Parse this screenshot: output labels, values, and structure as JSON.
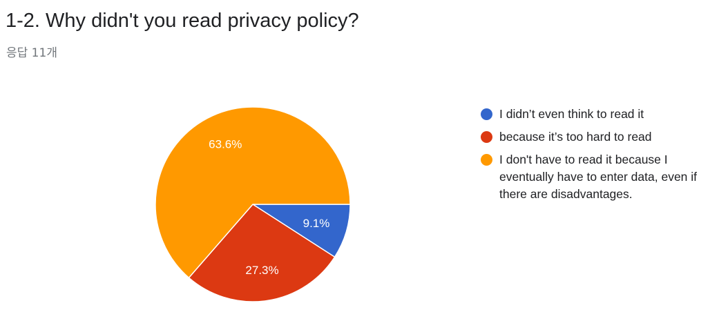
{
  "header": {
    "title": "1-2. Why didn't you read privacy policy?",
    "responses": "응답 11개"
  },
  "chart_data": {
    "type": "pie",
    "title": "1-2. Why didn't you read privacy policy?",
    "slices": [
      {
        "label": "I didn’t even think to read it",
        "value": 9.1,
        "display": "9.1%",
        "color": "#3366cc"
      },
      {
        "label": "because it’s too hard to read",
        "value": 27.3,
        "display": "27.3%",
        "color": "#dc3912"
      },
      {
        "label": "I don't have to read it because I eventually have to enter data, even if there are disadvantages.",
        "value": 63.6,
        "display": "63.6%",
        "color": "#ff9900"
      }
    ],
    "legend_position": "right"
  }
}
